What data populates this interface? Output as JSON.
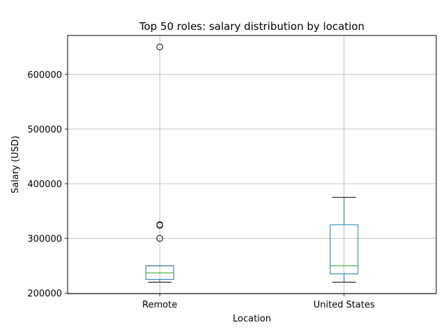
{
  "chart_data": {
    "type": "box",
    "title": "Top 50 roles: salary distribution by location",
    "xlabel": "Location",
    "ylabel": "Salary (USD)",
    "ylim": [
      199000,
      671000
    ],
    "yticks": [
      200000,
      300000,
      400000,
      500000,
      600000
    ],
    "ytick_labels": [
      "200000",
      "300000",
      "400000",
      "500000",
      "600000"
    ],
    "grid": true,
    "categories": [
      "Remote",
      "United States"
    ],
    "boxes": [
      {
        "category": "Remote",
        "whisker_low": 220000,
        "q1": 225000,
        "median": 237000,
        "q3": 250000,
        "whisker_high": 250000,
        "outliers": [
          300000,
          324000,
          325000,
          650000
        ]
      },
      {
        "category": "United States",
        "whisker_low": 220000,
        "q1": 235000,
        "median": 250000,
        "q3": 325000,
        "whisker_high": 375000,
        "outliers": []
      }
    ],
    "colors": {
      "box": "#1f77b4",
      "median": "#2ca02c",
      "whisker": "#1f77b4",
      "cap": "#000000",
      "outlier": "#000000",
      "grid": "#b0b0b0"
    }
  }
}
